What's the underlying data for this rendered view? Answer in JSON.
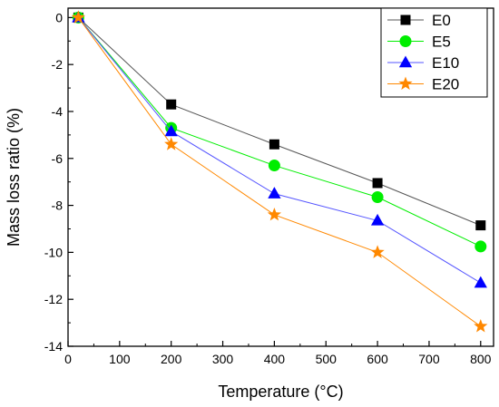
{
  "chart_data": {
    "type": "line",
    "xlabel": "Temperature (°C)",
    "ylabel": "Mass loss ratio (%)",
    "xlim": [
      0,
      825
    ],
    "ylim": [
      -14,
      0.4
    ],
    "x_ticks": [
      0,
      100,
      200,
      300,
      400,
      500,
      600,
      700,
      800
    ],
    "y_ticks": [
      0,
      -2,
      -4,
      -6,
      -8,
      -10,
      -12,
      -14
    ],
    "x_tick_labels": [
      "0",
      "100",
      "200",
      "300",
      "400",
      "500",
      "600",
      "700",
      "800"
    ],
    "y_tick_labels": [
      "0",
      "-2",
      "-4",
      "-6",
      "-8",
      "-10",
      "-12",
      "-14"
    ],
    "grid": false,
    "legend_position": "top-right",
    "x": [
      20,
      200,
      400,
      600,
      800
    ],
    "series": [
      {
        "name": "E0",
        "marker": "square",
        "color": "#000000",
        "line_color": "#555555",
        "values": [
          0,
          -3.7,
          -5.4,
          -7.05,
          -8.85
        ]
      },
      {
        "name": "E5",
        "marker": "circle",
        "color": "#00ee00",
        "line_color": "#00ee00",
        "values": [
          0,
          -4.7,
          -6.3,
          -7.65,
          -9.75
        ]
      },
      {
        "name": "E10",
        "marker": "triangle",
        "color": "#0000ff",
        "line_color": "#5555ff",
        "values": [
          0,
          -4.85,
          -7.5,
          -8.65,
          -11.3
        ]
      },
      {
        "name": "E20",
        "marker": "star",
        "color": "#ff8800",
        "line_color": "#ff8800",
        "values": [
          0,
          -5.4,
          -8.4,
          -10.0,
          -13.15
        ]
      }
    ]
  }
}
